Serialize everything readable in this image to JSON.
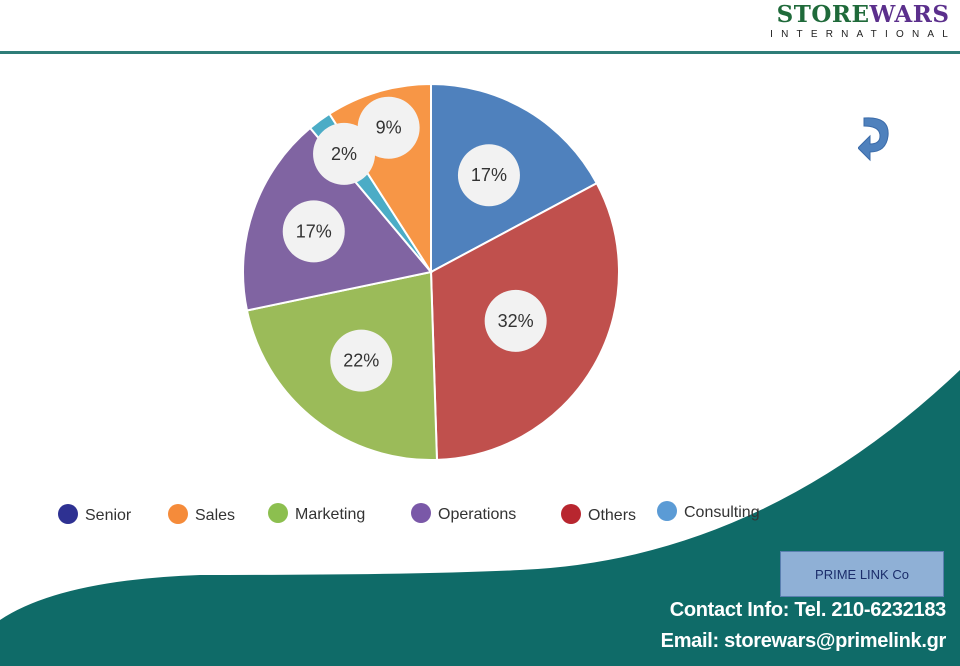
{
  "logo": {
    "brand_store": "STORE",
    "brand_wars": "WARS",
    "subtitle": "INTERNATIONAL"
  },
  "chart_data": {
    "type": "pie",
    "title": "",
    "slices": [
      {
        "label": "Consulting",
        "value": 17,
        "display": "17%",
        "color": "#4f81bd"
      },
      {
        "label": "Others",
        "value": 32,
        "display": "32%",
        "color": "#c0504d"
      },
      {
        "label": "Marketing",
        "value": 22,
        "display": "22%",
        "color": "#9bbb59"
      },
      {
        "label": "Operations",
        "value": 17,
        "display": "17%",
        "color": "#8064a2"
      },
      {
        "label": "Senior",
        "value": 2,
        "display": "2%",
        "color": "#4bacc6"
      },
      {
        "label": "Sales",
        "value": 9,
        "display": "9%",
        "color": "#f79646"
      }
    ],
    "legend": [
      {
        "label": "Senior",
        "color": "#2e3192"
      },
      {
        "label": "Sales",
        "color": "#f58b3a"
      },
      {
        "label": "Marketing",
        "color": "#8cbf4f"
      },
      {
        "label": "Operations",
        "color": "#7a58a8"
      },
      {
        "label": "Others",
        "color": "#b8262f"
      },
      {
        "label": "Consulting",
        "color": "#5b9bd5"
      }
    ],
    "legend_position": "bottom"
  },
  "badge": {
    "text": "PRIME LINK Co"
  },
  "contact": {
    "line1": "Contact Info: Tel. 210-6232183",
    "line2": "Email: storewars@primelink.gr"
  },
  "colors": {
    "teal": "#0f6b68",
    "accent_line": "#2f7d78"
  }
}
